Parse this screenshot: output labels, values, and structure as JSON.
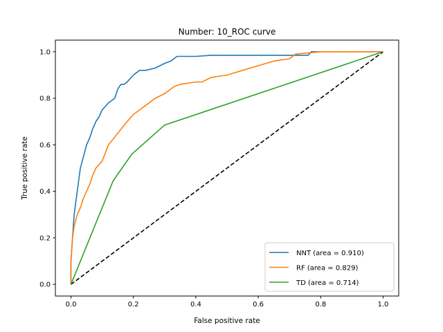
{
  "chart_data": {
    "type": "line",
    "title": "Number: 10_ROC curve",
    "xlabel": "False positive rate",
    "ylabel": "True positive rate",
    "xlim": [
      -0.05,
      1.05
    ],
    "ylim": [
      -0.05,
      1.05
    ],
    "xticks": [
      "0.0",
      "0.2",
      "0.4",
      "0.6",
      "0.8",
      "1.0"
    ],
    "yticks": [
      "0.0",
      "0.2",
      "0.4",
      "0.6",
      "0.8",
      "1.0"
    ],
    "grid": false,
    "legend_position": "lower-right",
    "series": [
      {
        "name": "NNT (area = 0.910)",
        "color": "#1f77b4",
        "x": [
          0.0,
          0.0,
          0.005,
          0.01,
          0.015,
          0.02,
          0.025,
          0.03,
          0.04,
          0.05,
          0.06,
          0.07,
          0.08,
          0.09,
          0.1,
          0.12,
          0.14,
          0.15,
          0.16,
          0.17,
          0.18,
          0.2,
          0.22,
          0.24,
          0.27,
          0.3,
          0.32,
          0.34,
          0.4,
          0.45,
          0.55,
          0.65,
          0.76,
          0.77,
          1.0
        ],
        "y": [
          0.0,
          0.1,
          0.2,
          0.3,
          0.35,
          0.4,
          0.45,
          0.5,
          0.55,
          0.6,
          0.63,
          0.67,
          0.7,
          0.72,
          0.75,
          0.78,
          0.8,
          0.84,
          0.86,
          0.86,
          0.87,
          0.9,
          0.92,
          0.92,
          0.93,
          0.95,
          0.96,
          0.98,
          0.98,
          0.985,
          0.985,
          0.985,
          0.985,
          1.0,
          1.0
        ]
      },
      {
        "name": "RF (area = 0.829)",
        "color": "#ff7f0e",
        "x": [
          0.0,
          0.0,
          0.005,
          0.01,
          0.02,
          0.03,
          0.04,
          0.05,
          0.06,
          0.07,
          0.08,
          0.1,
          0.12,
          0.15,
          0.18,
          0.2,
          0.22,
          0.25,
          0.27,
          0.3,
          0.33,
          0.35,
          0.4,
          0.42,
          0.45,
          0.5,
          0.55,
          0.6,
          0.65,
          0.7,
          0.72,
          0.8,
          1.0
        ],
        "y": [
          0.0,
          0.1,
          0.2,
          0.25,
          0.3,
          0.33,
          0.37,
          0.4,
          0.43,
          0.47,
          0.5,
          0.53,
          0.6,
          0.65,
          0.7,
          0.73,
          0.75,
          0.78,
          0.8,
          0.82,
          0.85,
          0.86,
          0.87,
          0.87,
          0.89,
          0.9,
          0.92,
          0.94,
          0.96,
          0.97,
          0.99,
          1.0,
          1.0
        ]
      },
      {
        "name": "TD (area = 0.714)",
        "color": "#2ca02c",
        "x": [
          0.0,
          0.135,
          0.195,
          0.3,
          1.0
        ],
        "y": [
          0.0,
          0.445,
          0.56,
          0.685,
          1.0
        ]
      }
    ],
    "reference_line": {
      "color": "#000000",
      "x": [
        0.0,
        1.0
      ],
      "y": [
        0.0,
        1.0
      ]
    }
  }
}
